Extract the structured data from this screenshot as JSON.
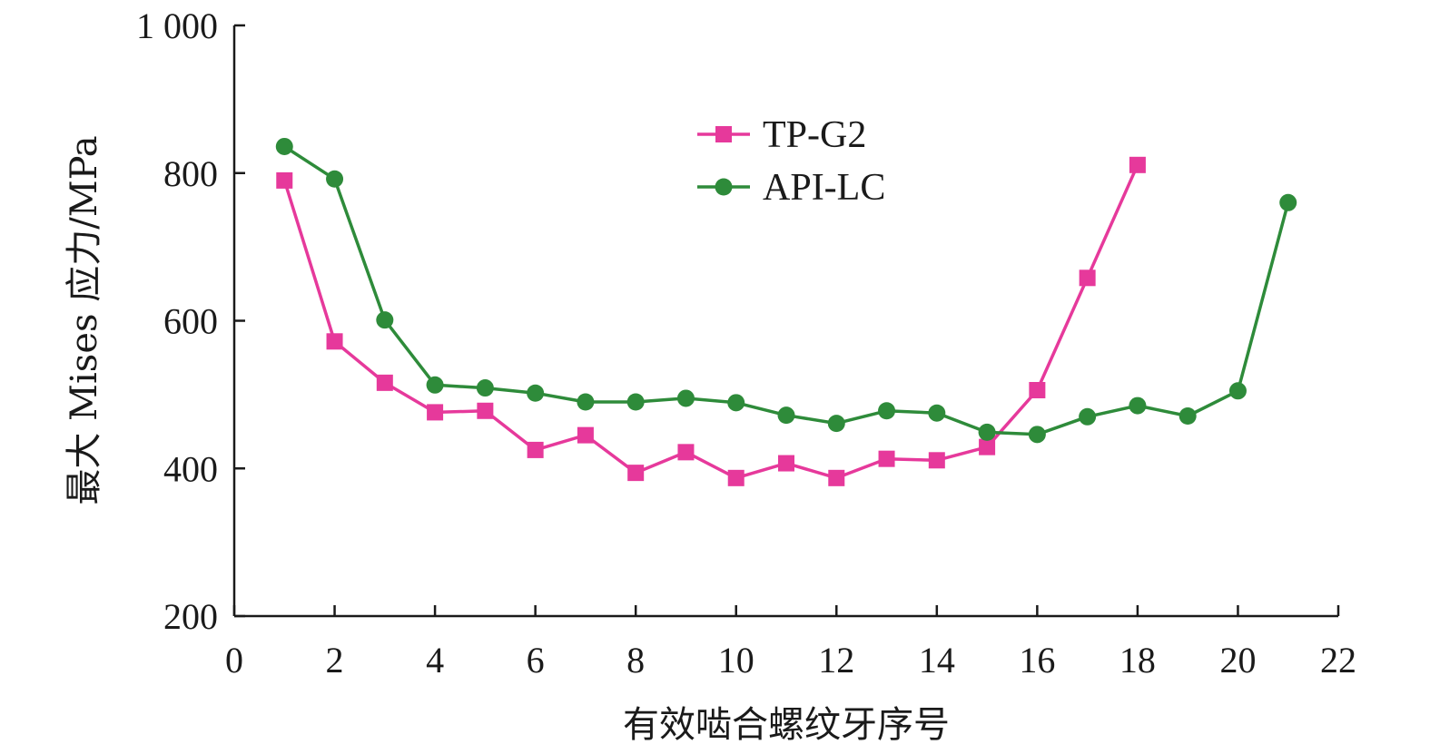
{
  "chart_data": {
    "type": "line",
    "xlabel": "有效啮合螺纹牙序号",
    "ylabel": "最大 Mises 应力/MPa",
    "xlim": [
      0,
      22
    ],
    "ylim": [
      200,
      1000
    ],
    "x_ticks": [
      0,
      2,
      4,
      6,
      8,
      10,
      12,
      14,
      16,
      18,
      20,
      22
    ],
    "y_ticks": [
      200,
      400,
      600,
      800,
      1000
    ],
    "x_tick_labels": [
      "0",
      "2",
      "4",
      "6",
      "8",
      "10",
      "12",
      "14",
      "16",
      "18",
      "20",
      "22"
    ],
    "y_tick_labels": [
      "200",
      "400",
      "600",
      "800",
      "1 000"
    ],
    "grid": false,
    "legend_position": "top-center",
    "series": [
      {
        "name": "TP-G2",
        "color": "#e6399b",
        "marker": "square",
        "x": [
          1,
          2,
          3,
          4,
          5,
          6,
          7,
          8,
          9,
          10,
          11,
          12,
          13,
          14,
          15,
          16,
          17,
          18
        ],
        "y": [
          790,
          572,
          516,
          476,
          478,
          425,
          445,
          394,
          422,
          387,
          407,
          387,
          413,
          411,
          429,
          506,
          658,
          811
        ]
      },
      {
        "name": "API-LC",
        "color": "#2e8b3a",
        "marker": "circle",
        "x": [
          1,
          2,
          3,
          4,
          5,
          6,
          7,
          8,
          9,
          10,
          11,
          12,
          13,
          14,
          15,
          16,
          17,
          18,
          19,
          20,
          21
        ],
        "y": [
          836,
          792,
          601,
          513,
          509,
          502,
          490,
          490,
          495,
          489,
          472,
          461,
          478,
          475,
          449,
          446,
          470,
          485,
          471,
          505,
          760
        ]
      }
    ]
  }
}
